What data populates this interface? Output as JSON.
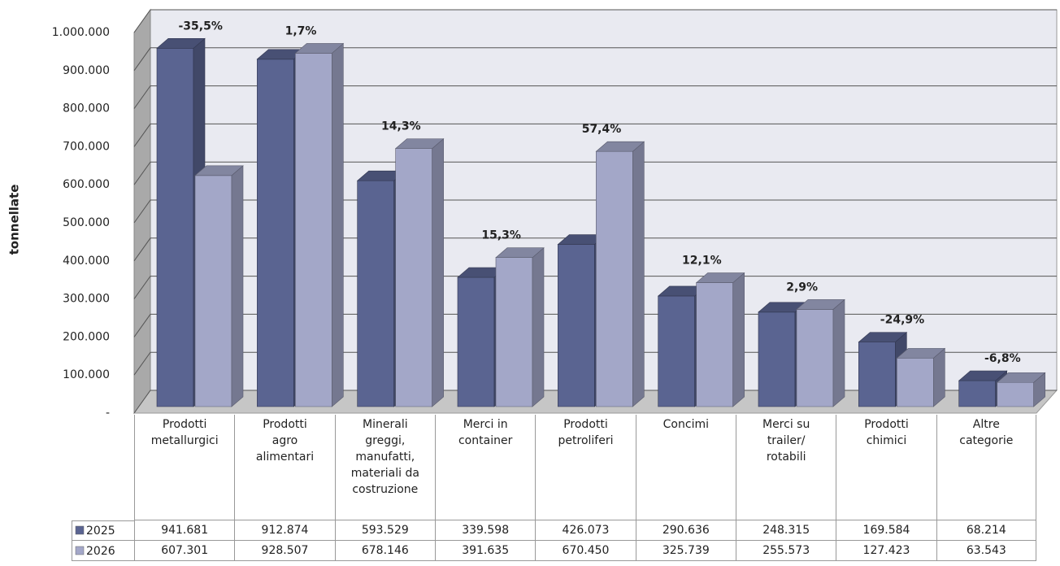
{
  "chart_data": {
    "type": "bar3d",
    "y_label": "tonnellate",
    "categories": [
      "Prodotti\nmetallurgici",
      "Prodotti\nagro\nalimentari",
      "Minerali\ngreggi,\nmanufatti,\nmateriali da\ncostruzione",
      "Merci in\ncontainer",
      "Prodotti\npetroliferi",
      "Concimi",
      "Merci su\ntrailer/\nrotabili",
      "Prodotti\nchimici",
      "Altre\ncategorie"
    ],
    "series": [
      {
        "name": "2025",
        "color": "#5a6491",
        "values": [
          941681,
          912874,
          593529,
          339598,
          426073,
          290636,
          248315,
          169584,
          68214
        ],
        "value_labels": [
          "941.681",
          "912.874",
          "593.529",
          "339.598",
          "426.073",
          "290.636",
          "248.315",
          "169.584",
          "68.214"
        ]
      },
      {
        "name": "2026",
        "color": "#a3a7c8",
        "values": [
          607301,
          928507,
          678146,
          391635,
          670450,
          325739,
          255573,
          127423,
          63543
        ],
        "value_labels": [
          "607.301",
          "928.507",
          "678.146",
          "391.635",
          "670.450",
          "325.739",
          "255.573",
          "127.423",
          "63.543"
        ]
      }
    ],
    "annotations": [
      "-35,5%",
      "1,7%",
      "14,3%",
      "15,3%",
      "57,4%",
      "12,1%",
      "2,9%",
      "-24,9%",
      "-6,8%"
    ],
    "ylim": [
      0,
      1000000
    ],
    "yticks": [
      {
        "value": 0,
        "label": "-"
      },
      {
        "value": 100000,
        "label": "100.000"
      },
      {
        "value": 200000,
        "label": "200.000"
      },
      {
        "value": 300000,
        "label": "300.000"
      },
      {
        "value": 400000,
        "label": "400.000"
      },
      {
        "value": 500000,
        "label": "500.000"
      },
      {
        "value": 600000,
        "label": "600.000"
      },
      {
        "value": 700000,
        "label": "700.000"
      },
      {
        "value": 800000,
        "label": "800.000"
      },
      {
        "value": 900000,
        "label": "900.000"
      },
      {
        "value": 1000000,
        "label": "1.000.000"
      }
    ],
    "grid": true
  }
}
